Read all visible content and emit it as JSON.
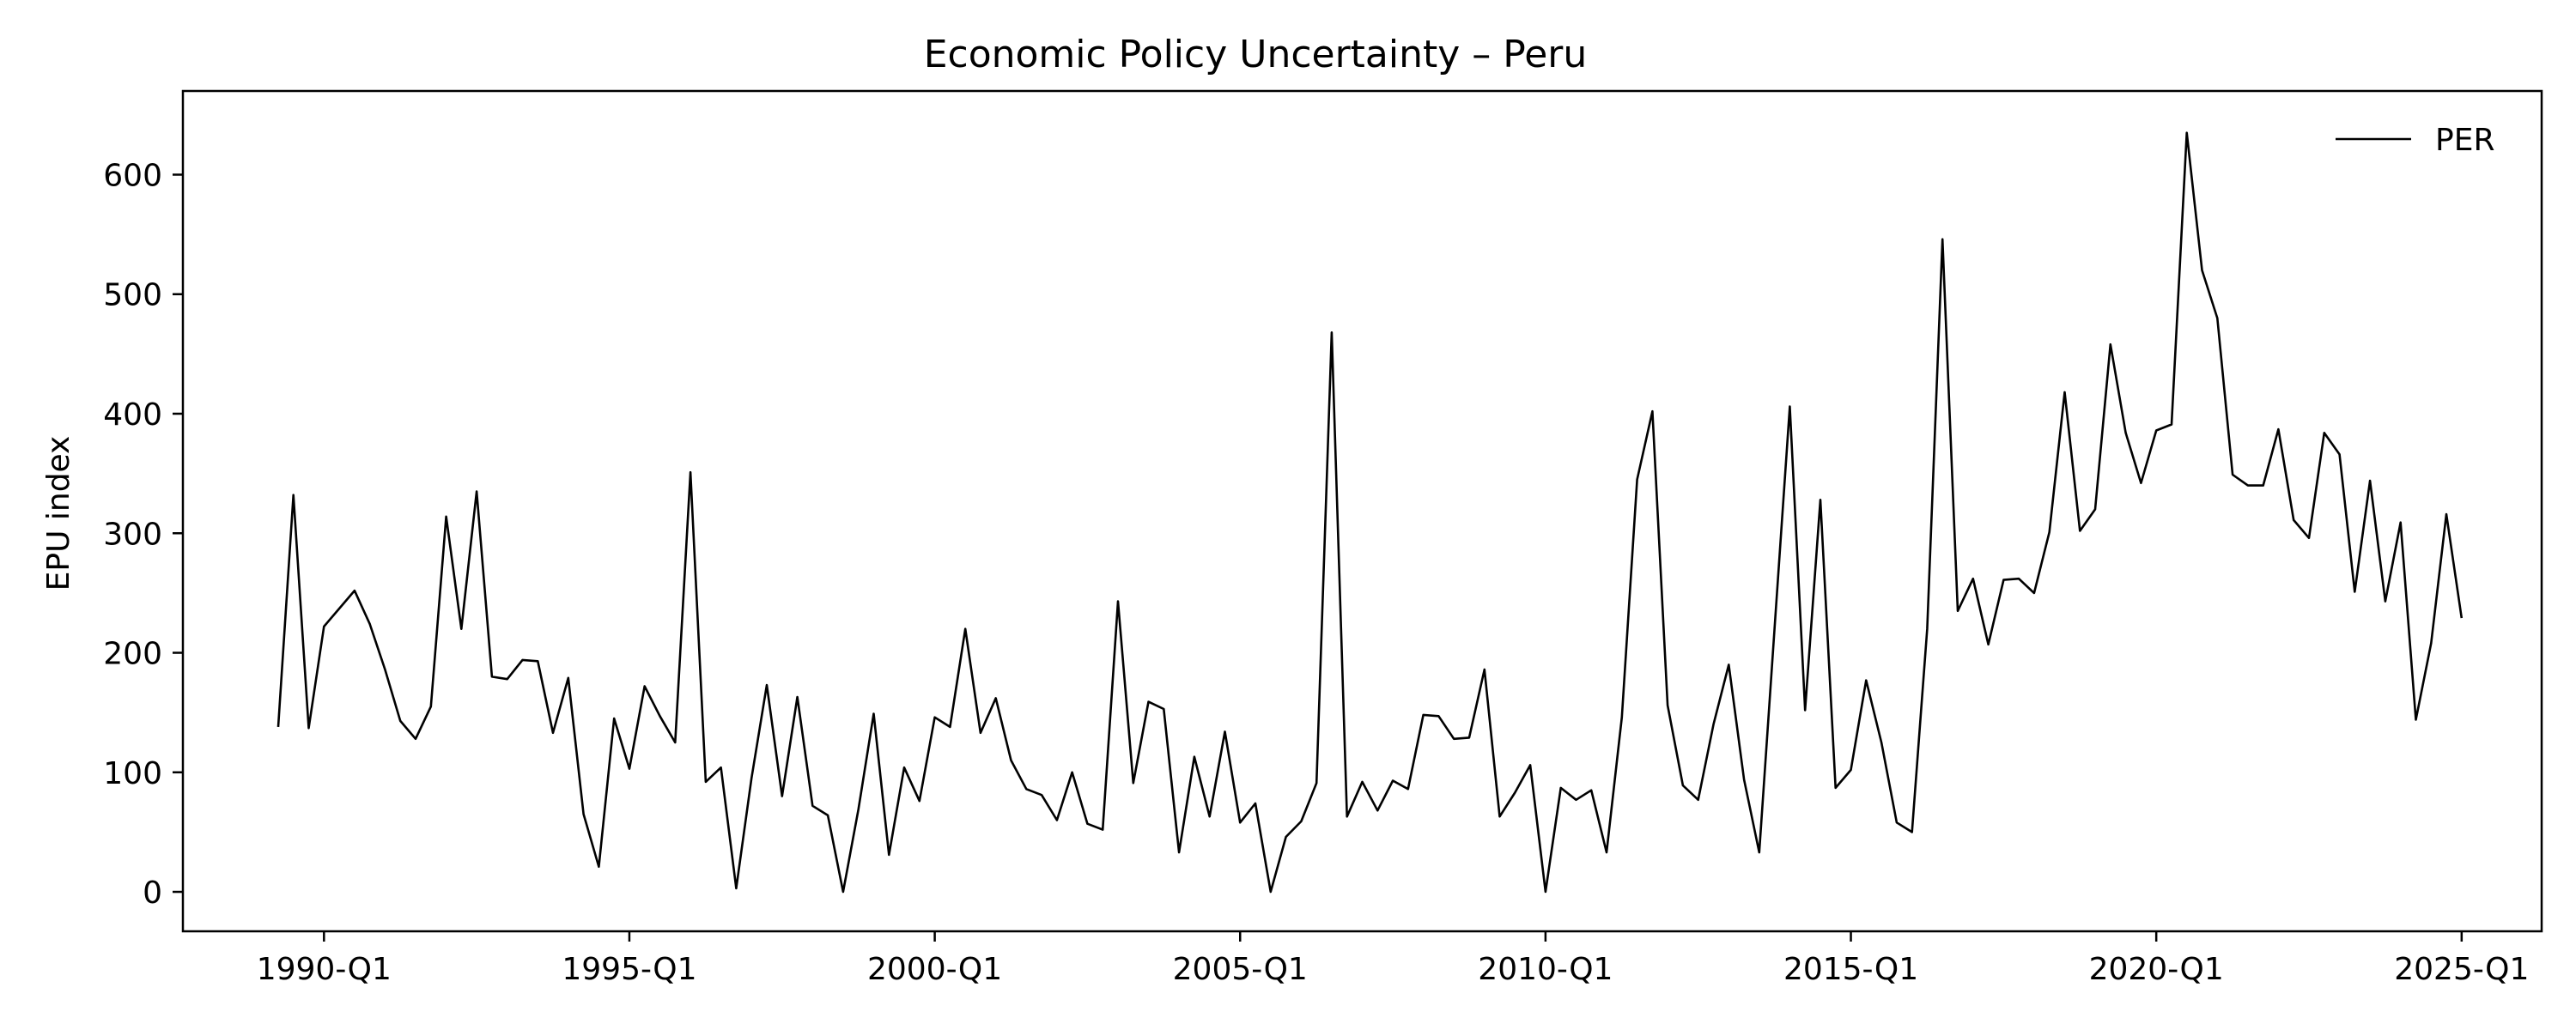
{
  "chart_data": {
    "type": "line",
    "title": "Economic Policy Uncertainty – Peru",
    "xlabel": "",
    "ylabel": "EPU index",
    "xlim": [
      1987.69,
      2026.31
    ],
    "ylim": [
      -33,
      670
    ],
    "x_ticks": [
      {
        "value": 1990,
        "label": "1990-Q1"
      },
      {
        "value": 1995,
        "label": "1995-Q1"
      },
      {
        "value": 2000,
        "label": "2000-Q1"
      },
      {
        "value": 2005,
        "label": "2005-Q1"
      },
      {
        "value": 2010,
        "label": "2010-Q1"
      },
      {
        "value": 2015,
        "label": "2015-Q1"
      },
      {
        "value": 2020,
        "label": "2020-Q1"
      },
      {
        "value": 2025,
        "label": "2025-Q1"
      }
    ],
    "y_ticks": [
      0,
      100,
      200,
      300,
      400,
      500,
      600
    ],
    "grid": false,
    "legend": {
      "placement": "top-right"
    },
    "series": [
      {
        "name": "PER",
        "color": "#000000",
        "x": [
          1989.25,
          1989.5,
          1989.75,
          1990.0,
          1990.25,
          1990.5,
          1990.75,
          1991.0,
          1991.25,
          1991.5,
          1991.75,
          1992.0,
          1992.25,
          1992.5,
          1992.75,
          1993.0,
          1993.25,
          1993.5,
          1993.75,
          1994.0,
          1994.25,
          1994.5,
          1994.75,
          1995.0,
          1995.25,
          1995.5,
          1995.75,
          1996.0,
          1996.25,
          1996.5,
          1996.75,
          1997.0,
          1997.25,
          1997.5,
          1997.75,
          1998.0,
          1998.25,
          1998.5,
          1998.75,
          1999.0,
          1999.25,
          1999.5,
          1999.75,
          2000.0,
          2000.25,
          2000.5,
          2000.75,
          2001.0,
          2001.25,
          2001.5,
          2001.75,
          2002.0,
          2002.25,
          2002.5,
          2002.75,
          2003.0,
          2003.25,
          2003.5,
          2003.75,
          2004.0,
          2004.25,
          2004.5,
          2004.75,
          2005.0,
          2005.25,
          2005.5,
          2005.75,
          2006.0,
          2006.25,
          2006.5,
          2006.75,
          2007.0,
          2007.25,
          2007.5,
          2007.75,
          2008.0,
          2008.25,
          2008.5,
          2008.75,
          2009.0,
          2009.25,
          2009.5,
          2009.75,
          2010.0,
          2010.25,
          2010.5,
          2010.75,
          2011.0,
          2011.25,
          2011.5,
          2011.75,
          2012.0,
          2012.25,
          2012.5,
          2012.75,
          2013.0,
          2013.25,
          2013.5,
          2013.75,
          2014.0,
          2014.25,
          2014.5,
          2014.75,
          2015.0,
          2015.25,
          2015.5,
          2015.75,
          2016.0,
          2016.25,
          2016.5,
          2016.75,
          2017.0,
          2017.25,
          2017.5,
          2017.75,
          2018.0,
          2018.25,
          2018.5,
          2018.75,
          2019.0,
          2019.25,
          2019.5,
          2019.75,
          2020.0,
          2020.25,
          2020.5,
          2020.75,
          2021.0,
          2021.25,
          2021.5,
          2021.75,
          2022.0,
          2022.25,
          2022.5,
          2022.75,
          2023.0,
          2023.25,
          2023.5,
          2023.75,
          2024.0,
          2024.25,
          2024.5,
          2024.75,
          2025.0
        ],
        "values": [
          138,
          332,
          137,
          222,
          237,
          252,
          224,
          186,
          143,
          128,
          155,
          314,
          220,
          335,
          180,
          178,
          194,
          193,
          133,
          179,
          65,
          21,
          145,
          103,
          172,
          147,
          125,
          351,
          92,
          104,
          3,
          95,
          173,
          80,
          163,
          72,
          64,
          0,
          69,
          149,
          31,
          104,
          76,
          146,
          138,
          220,
          133,
          162,
          110,
          86,
          81,
          60,
          100,
          57,
          52,
          243,
          91,
          159,
          153,
          33,
          113,
          63,
          134,
          58,
          74,
          0,
          46,
          59,
          91,
          468,
          63,
          92,
          68,
          93,
          86,
          148,
          147,
          128,
          129,
          186,
          63,
          83,
          106,
          0,
          87,
          77,
          85,
          33,
          146,
          345,
          402,
          156,
          89,
          77,
          140,
          190,
          94,
          33,
          220,
          406,
          152,
          328,
          87,
          102,
          177,
          125,
          58,
          50,
          220,
          546,
          235,
          262,
          207,
          261,
          262,
          250,
          301,
          418,
          302,
          320,
          458,
          384,
          342,
          386,
          391,
          635,
          520,
          480,
          349,
          340,
          340,
          387,
          311,
          296,
          384,
          366,
          251,
          344,
          243,
          309,
          144,
          208,
          316,
          229
        ]
      }
    ]
  }
}
